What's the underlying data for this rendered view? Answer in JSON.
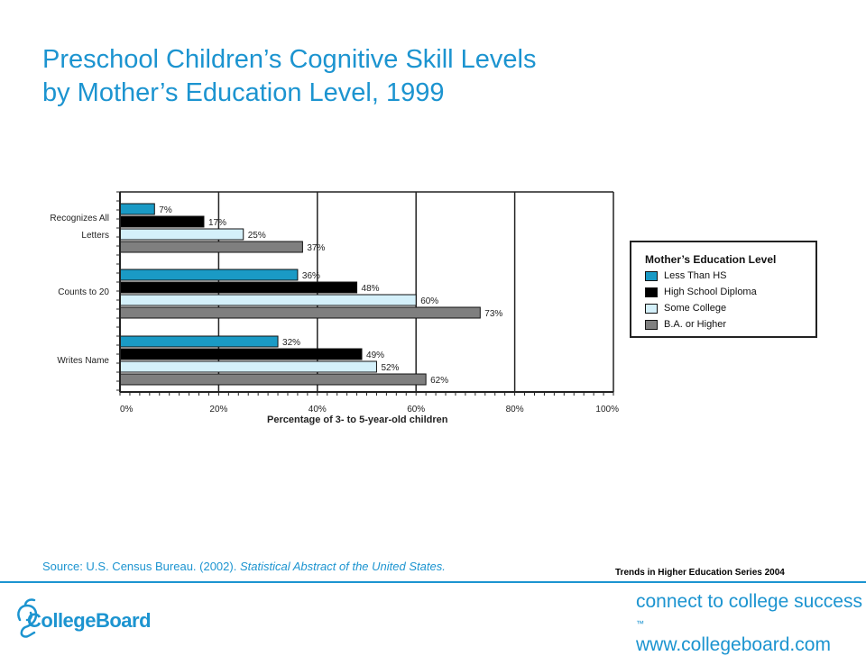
{
  "header": {
    "title_line1": "Preschool Children’s Cognitive Skill Levels",
    "title_line2": "by Mother’s Education Level, 1999"
  },
  "chart_data": {
    "type": "bar",
    "orientation": "horizontal",
    "categories": [
      "Recognizes All Letters",
      "Counts to 20",
      "Writes Name"
    ],
    "category_label_lines": [
      [
        "Recognizes All",
        "Letters"
      ],
      [
        "Counts to 20"
      ],
      [
        "Writes Name"
      ]
    ],
    "series": [
      {
        "name": "Less Than HS",
        "values": [
          7,
          36,
          32
        ],
        "color": "#1a9ac5"
      },
      {
        "name": "High School Diploma",
        "values": [
          17,
          48,
          49
        ],
        "color": "#000000"
      },
      {
        "name": "Some College",
        "values": [
          25,
          60,
          52
        ],
        "color": "#d4f0fa"
      },
      {
        "name": "B.A. or Higher",
        "values": [
          37,
          73,
          62
        ],
        "color": "#7f7f7f"
      }
    ],
    "data_labels": [
      [
        "7%",
        "36%",
        "32%"
      ],
      [
        "17%",
        "48%",
        "49%"
      ],
      [
        "25%",
        "60%",
        "52%"
      ],
      [
        "37%",
        "73%",
        "62%"
      ]
    ],
    "xlim": [
      0,
      100
    ],
    "xticks": [
      0,
      20,
      40,
      60,
      80,
      100
    ],
    "xtick_labels": [
      "0%",
      "20%",
      "40%",
      "60%",
      "80%",
      "100%"
    ],
    "xlabel": "Percentage of 3- to 5-year-old children",
    "grid": "vertical lines at 20% steps",
    "legend": {
      "title": "Mother’s Education Level",
      "placement": "right"
    }
  },
  "footer": {
    "source_prefix": "Source:  U.S. Census Bureau. (2002).  ",
    "source_italic": "Statistical Abstract of the United States.",
    "series_tag": "Trends in Higher Education Series 2004",
    "logo_text": "CollegeBoard",
    "tagline_line1": "connect to college success",
    "tagline_tm": "™",
    "tagline_line2": "www.collegeboard.com",
    "brand_color": "#1c94d0"
  }
}
